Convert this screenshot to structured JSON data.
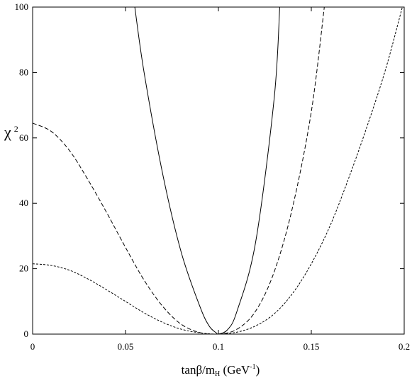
{
  "chart_data": {
    "type": "line",
    "title": "",
    "xlabel": {
      "main": "tanβ/m",
      "sub": "H",
      "unit_open": " (GeV",
      "unit_sup": "-1",
      "unit_close": ")"
    },
    "ylabel": {
      "main": "χ",
      "sup": "2"
    },
    "xlim": [
      0,
      0.2
    ],
    "ylim": [
      0,
      100
    ],
    "xticks": [
      0,
      0.05,
      0.1,
      0.15,
      0.2
    ],
    "xtick_labels": [
      "0",
      "0.05",
      "0.1",
      "0.15",
      "0.2"
    ],
    "yticks": [
      0,
      20,
      40,
      60,
      80,
      100
    ],
    "ytick_labels": [
      "0",
      "20",
      "40",
      "60",
      "80",
      "100"
    ],
    "grid": false,
    "series": [
      {
        "style": "solid",
        "x": [
          0.055,
          0.06,
          0.07,
          0.08,
          0.09,
          0.095,
          0.099,
          0.1,
          0.105,
          0.11,
          0.12,
          0.13,
          0.133
        ],
        "y": [
          100,
          80,
          49,
          25,
          8.5,
          2.5,
          0.3,
          0,
          1.4,
          7,
          28,
          72,
          100
        ]
      },
      {
        "style": "dashed",
        "x": [
          0,
          0.01,
          0.02,
          0.03,
          0.04,
          0.05,
          0.06,
          0.07,
          0.08,
          0.09,
          0.1,
          0.11,
          0.12,
          0.13,
          0.14,
          0.15,
          0.157
        ],
        "y": [
          64.5,
          62,
          56,
          47,
          37,
          26.5,
          16.5,
          8.5,
          3,
          0.5,
          0,
          1.5,
          7,
          19,
          39,
          68,
          100
        ]
      },
      {
        "style": "dotted",
        "x": [
          0,
          0.01,
          0.02,
          0.03,
          0.04,
          0.05,
          0.06,
          0.07,
          0.08,
          0.09,
          0.1,
          0.11,
          0.12,
          0.13,
          0.14,
          0.15,
          0.16,
          0.17,
          0.18,
          0.19,
          0.199
        ],
        "y": [
          21.5,
          21,
          19.5,
          16.8,
          13.5,
          10,
          6.5,
          3.6,
          1.5,
          0.4,
          0,
          0.6,
          2.5,
          6.2,
          12.5,
          21.5,
          33,
          47.5,
          63.5,
          81,
          100
        ]
      }
    ]
  }
}
